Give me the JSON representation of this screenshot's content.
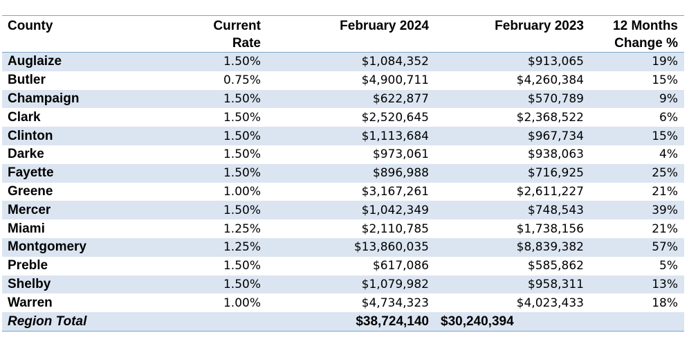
{
  "table": {
    "headers": {
      "county": "County",
      "rate_line1": "Current",
      "rate_line2": "Rate",
      "feb2024": "February 2024",
      "feb2023": "February 2023",
      "change_line1": "12 Months",
      "change_line2": "Change %"
    },
    "rows": [
      {
        "county": "Auglaize",
        "rate": "1.50%",
        "feb2024": "$1,084,352",
        "feb2023": "$913,065",
        "change": "19%"
      },
      {
        "county": "Butler",
        "rate": "0.75%",
        "feb2024": "$4,900,711",
        "feb2023": "$4,260,384",
        "change": "15%"
      },
      {
        "county": "Champaign",
        "rate": "1.50%",
        "feb2024": "$622,877",
        "feb2023": "$570,789",
        "change": "9%"
      },
      {
        "county": "Clark",
        "rate": "1.50%",
        "feb2024": "$2,520,645",
        "feb2023": "$2,368,522",
        "change": "6%"
      },
      {
        "county": "Clinton",
        "rate": "1.50%",
        "feb2024": "$1,113,684",
        "feb2023": "$967,734",
        "change": "15%"
      },
      {
        "county": "Darke",
        "rate": "1.50%",
        "feb2024": "$973,061",
        "feb2023": "$938,063",
        "change": "4%"
      },
      {
        "county": "Fayette",
        "rate": "1.50%",
        "feb2024": "$896,988",
        "feb2023": "$716,925",
        "change": "25%"
      },
      {
        "county": "Greene",
        "rate": "1.00%",
        "feb2024": "$3,167,261",
        "feb2023": "$2,611,227",
        "change": "21%"
      },
      {
        "county": "Mercer",
        "rate": "1.50%",
        "feb2024": "$1,042,349",
        "feb2023": "$748,543",
        "change": "39%"
      },
      {
        "county": "Miami",
        "rate": "1.25%",
        "feb2024": "$2,110,785",
        "feb2023": "$1,738,156",
        "change": "21%"
      },
      {
        "county": "Montgomery",
        "rate": "1.25%",
        "feb2024": "$13,860,035",
        "feb2023": "$8,839,382",
        "change": "57%"
      },
      {
        "county": "Preble",
        "rate": "1.50%",
        "feb2024": "$617,086",
        "feb2023": "$585,862",
        "change": "5%"
      },
      {
        "county": "Shelby",
        "rate": "1.50%",
        "feb2024": "$1,079,982",
        "feb2023": "$958,311",
        "change": "13%"
      },
      {
        "county": "Warren",
        "rate": "1.00%",
        "feb2024": "$4,734,323",
        "feb2023": "$4,023,433",
        "change": "18%"
      }
    ],
    "total": {
      "label": "Region Total",
      "rate": "",
      "feb2024": "$38,724,140",
      "feb2023": "$30,240,394",
      "change": ""
    }
  },
  "colors": {
    "row_shade": "#dbe5f1",
    "rule": "#7aa3cc"
  }
}
